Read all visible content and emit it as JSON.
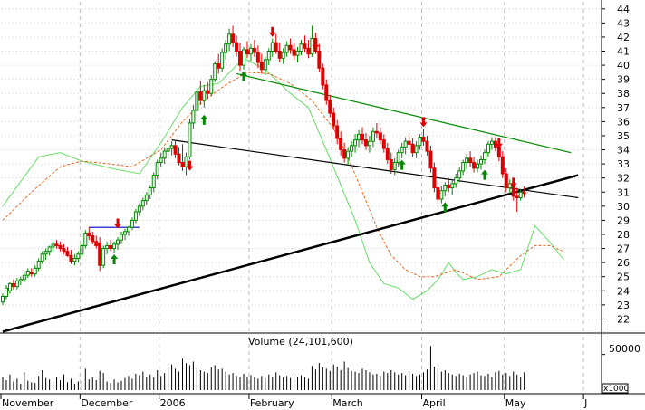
{
  "chart_data": {
    "type": "candlestick",
    "price_axis": {
      "ylim": [
        21,
        44.5
      ],
      "ticks": [
        22,
        23,
        24,
        25,
        26,
        27,
        28,
        29,
        30,
        31,
        32,
        33,
        34,
        35,
        36,
        37,
        38,
        39,
        40,
        41,
        42,
        43,
        44
      ],
      "side": "right"
    },
    "volume_axis": {
      "label": "Volume (24,101,600)",
      "tick": "50000",
      "unit": "x1000",
      "ylim": [
        0,
        75000
      ]
    },
    "x_axis": {
      "labels": [
        "November",
        "December",
        "2006",
        "February",
        "March",
        "April",
        "May",
        "J"
      ],
      "day_count": 166,
      "label_days": [
        0,
        22,
        44,
        69,
        92,
        117,
        140,
        162
      ],
      "grid_days": [
        22,
        44,
        69,
        92,
        117,
        140,
        162
      ]
    },
    "colors": {
      "up": "#008800",
      "down": "#dd0000",
      "ma_fast": "#66dd66",
      "ma_slow": "#ee6622",
      "resistance": "#008800",
      "support": "#000000",
      "box": "#0000cc"
    },
    "trendlines": [
      {
        "name": "long-support",
        "color": "#000000",
        "width": 2.5,
        "points": [
          [
            0,
            21.1
          ],
          [
            160,
            32.2
          ]
        ]
      },
      {
        "name": "neckline",
        "color": "#000000",
        "width": 1.2,
        "points": [
          [
            47,
            34.7
          ],
          [
            160,
            30.6
          ]
        ]
      },
      {
        "name": "resistance",
        "color": "#008800",
        "width": 1.2,
        "points": [
          [
            65,
            39.4
          ],
          [
            158,
            33.8
          ]
        ]
      },
      {
        "name": "breakout-box",
        "color": "#0000cc",
        "width": 1.2,
        "points": [
          [
            24,
            28.5
          ],
          [
            38,
            28.5
          ]
        ]
      }
    ],
    "ma_fast": [
      [
        0,
        30
      ],
      [
        10,
        33.5
      ],
      [
        16,
        33.8
      ],
      [
        22,
        33.2
      ],
      [
        30,
        32.7
      ],
      [
        38,
        32.3
      ],
      [
        44,
        34.5
      ],
      [
        50,
        37
      ],
      [
        55,
        38.5
      ],
      [
        60,
        38.7
      ],
      [
        67,
        40.5
      ],
      [
        73,
        39.7
      ],
      [
        80,
        38
      ],
      [
        85,
        37
      ],
      [
        90,
        34
      ],
      [
        94,
        31.5
      ],
      [
        98,
        29
      ],
      [
        102,
        26
      ],
      [
        106,
        24.5
      ],
      [
        110,
        24.2
      ],
      [
        114,
        23.4
      ],
      [
        118,
        24
      ],
      [
        121,
        24.8
      ],
      [
        124,
        26
      ],
      [
        126,
        25.3
      ],
      [
        128,
        24.8
      ],
      [
        132,
        25
      ],
      [
        136,
        25.5
      ],
      [
        140,
        25.2
      ],
      [
        144,
        25.5
      ],
      [
        148,
        28.6
      ],
      [
        152,
        27.5
      ],
      [
        156,
        26.2
      ]
    ],
    "ma_slow": [
      [
        0,
        29
      ],
      [
        8,
        31
      ],
      [
        16,
        32.8
      ],
      [
        22,
        33.2
      ],
      [
        30,
        33
      ],
      [
        36,
        32.8
      ],
      [
        44,
        34
      ],
      [
        50,
        36
      ],
      [
        56,
        37.5
      ],
      [
        62,
        38.6
      ],
      [
        68,
        39.5
      ],
      [
        74,
        39.4
      ],
      [
        80,
        38.7
      ],
      [
        86,
        37.5
      ],
      [
        92,
        35.5
      ],
      [
        96,
        33.5
      ],
      [
        100,
        31
      ],
      [
        104,
        28.5
      ],
      [
        108,
        26.5
      ],
      [
        112,
        25.5
      ],
      [
        116,
        25
      ],
      [
        120,
        25
      ],
      [
        126,
        25.5
      ],
      [
        132,
        24.8
      ],
      [
        138,
        25
      ],
      [
        144,
        26.5
      ],
      [
        148,
        27.2
      ],
      [
        152,
        27.2
      ],
      [
        156,
        26.8
      ]
    ],
    "ohlc": [
      [
        0,
        23.2,
        23.8,
        23.0,
        23.6
      ],
      [
        1,
        23.6,
        24.4,
        23.4,
        24.2
      ],
      [
        2,
        24.0,
        24.6,
        23.8,
        24.5
      ],
      [
        3,
        24.5,
        24.8,
        24.1,
        24.3
      ],
      [
        4,
        24.3,
        24.9,
        24.1,
        24.7
      ],
      [
        5,
        24.7,
        25.0,
        24.4,
        24.8
      ],
      [
        6,
        24.8,
        25.3,
        24.6,
        25.1
      ],
      [
        7,
        25.1,
        25.6,
        24.9,
        25.4
      ],
      [
        8,
        25.3,
        25.6,
        25.0,
        25.2
      ],
      [
        9,
        25.2,
        25.8,
        25.0,
        25.6
      ],
      [
        10,
        25.6,
        26.3,
        25.4,
        26.1
      ],
      [
        11,
        26.1,
        26.8,
        25.9,
        26.6
      ],
      [
        12,
        26.6,
        27.0,
        26.2,
        26.8
      ],
      [
        13,
        26.8,
        27.2,
        26.5,
        27.1
      ],
      [
        14,
        27.1,
        27.5,
        26.8,
        27.3
      ],
      [
        15,
        27.3,
        27.6,
        27.0,
        27.2
      ],
      [
        16,
        27.2,
        27.5,
        26.8,
        27.0
      ],
      [
        17,
        27.0,
        27.3,
        26.6,
        26.8
      ],
      [
        18,
        26.8,
        27.1,
        26.4,
        26.5
      ],
      [
        19,
        26.5,
        26.9,
        25.9,
        26.1
      ],
      [
        20,
        26.1,
        26.6,
        25.8,
        26.3
      ],
      [
        21,
        26.3,
        26.8,
        26.0,
        26.6
      ],
      [
        22,
        26.6,
        27.4,
        26.4,
        27.2
      ],
      [
        23,
        27.2,
        28.3,
        27.0,
        28.1
      ],
      [
        24,
        28.1,
        28.5,
        27.6,
        27.9
      ],
      [
        25,
        27.9,
        28.2,
        27.3,
        27.5
      ],
      [
        26,
        27.5,
        27.9,
        27.0,
        27.2
      ],
      [
        27,
        27.4,
        27.8,
        25.4,
        25.8
      ],
      [
        28,
        25.8,
        27.2,
        25.6,
        27.0
      ],
      [
        29,
        27.0,
        27.5,
        26.6,
        27.2
      ],
      [
        30,
        27.2,
        27.6,
        26.8,
        27.0
      ],
      [
        31,
        27.0,
        27.5,
        26.7,
        27.3
      ],
      [
        32,
        27.3,
        27.8,
        26.9,
        27.6
      ],
      [
        33,
        27.6,
        28.2,
        27.3,
        28.0
      ],
      [
        34,
        28.0,
        28.4,
        27.6,
        28.2
      ],
      [
        35,
        28.2,
        28.6,
        27.9,
        28.5
      ],
      [
        36,
        28.5,
        29.2,
        28.3,
        29.0
      ],
      [
        37,
        29.0,
        29.8,
        28.8,
        29.6
      ],
      [
        38,
        29.6,
        30.2,
        29.3,
        30.0
      ],
      [
        39,
        30.0,
        30.6,
        29.7,
        30.4
      ],
      [
        40,
        30.4,
        31.0,
        30.1,
        30.8
      ],
      [
        41,
        30.8,
        31.5,
        30.5,
        31.3
      ],
      [
        42,
        31.3,
        32.4,
        31.0,
        32.2
      ],
      [
        43,
        32.2,
        33.3,
        31.9,
        33.1
      ],
      [
        44,
        33.1,
        33.8,
        32.8,
        33.4
      ],
      [
        45,
        33.4,
        34.2,
        33.0,
        33.9
      ],
      [
        46,
        33.9,
        34.5,
        33.4,
        34.1
      ],
      [
        47,
        34.1,
        34.6,
        33.6,
        34.3
      ],
      [
        48,
        34.3,
        34.7,
        33.4,
        33.7
      ],
      [
        49,
        33.7,
        34.2,
        32.9,
        33.1
      ],
      [
        50,
        33.1,
        34.4,
        32.5,
        32.8
      ],
      [
        51,
        32.8,
        33.8,
        32.2,
        33.5
      ],
      [
        52,
        33.5,
        36.2,
        33.3,
        35.9
      ],
      [
        53,
        35.9,
        37.2,
        35.5,
        36.8
      ],
      [
        54,
        36.8,
        38.4,
        36.4,
        38.1
      ],
      [
        55,
        38.1,
        38.9,
        37.2,
        37.5
      ],
      [
        56,
        37.5,
        38.6,
        37.0,
        38.2
      ],
      [
        57,
        38.2,
        38.8,
        37.6,
        38.0
      ],
      [
        58,
        38.0,
        39.3,
        37.8,
        39.0
      ],
      [
        59,
        39.0,
        40.3,
        38.8,
        40.1
      ],
      [
        60,
        40.1,
        40.8,
        39.4,
        39.8
      ],
      [
        61,
        39.8,
        41.2,
        39.5,
        40.9
      ],
      [
        62,
        40.9,
        41.8,
        40.4,
        41.5
      ],
      [
        63,
        41.5,
        42.6,
        41.0,
        42.2
      ],
      [
        64,
        42.2,
        42.8,
        41.3,
        41.6
      ],
      [
        65,
        41.6,
        42.1,
        40.6,
        41.0
      ],
      [
        66,
        41.0,
        41.6,
        39.6,
        40.0
      ],
      [
        67,
        40.0,
        41.3,
        39.7,
        41.1
      ],
      [
        68,
        41.1,
        41.7,
        40.5,
        40.8
      ],
      [
        69,
        40.8,
        41.5,
        40.3,
        41.2
      ],
      [
        70,
        41.2,
        41.8,
        40.6,
        40.9
      ],
      [
        71,
        40.9,
        41.4,
        39.8,
        40.2
      ],
      [
        72,
        40.2,
        40.8,
        39.4,
        39.7
      ],
      [
        73,
        39.7,
        40.6,
        39.3,
        40.4
      ],
      [
        74,
        40.4,
        41.2,
        40.0,
        41.0
      ],
      [
        75,
        41.0,
        41.9,
        40.6,
        41.6
      ],
      [
        76,
        41.6,
        42.2,
        40.8,
        41.0
      ],
      [
        77,
        41.0,
        41.6,
        40.2,
        40.5
      ],
      [
        78,
        40.5,
        41.2,
        40.1,
        40.9
      ],
      [
        79,
        40.9,
        41.7,
        40.6,
        41.4
      ],
      [
        80,
        41.4,
        41.9,
        40.8,
        41.1
      ],
      [
        81,
        41.1,
        41.6,
        40.4,
        40.7
      ],
      [
        82,
        40.7,
        41.3,
        40.2,
        41.0
      ],
      [
        83,
        41.0,
        41.8,
        40.7,
        41.5
      ],
      [
        84,
        41.5,
        42.1,
        40.9,
        41.2
      ],
      [
        85,
        41.2,
        41.8,
        40.5,
        40.8
      ],
      [
        86,
        40.8,
        42.8,
        40.6,
        41.9
      ],
      [
        87,
        41.9,
        42.3,
        40.8,
        41.0
      ],
      [
        88,
        41.0,
        41.5,
        39.5,
        39.8
      ],
      [
        89,
        39.8,
        40.1,
        38.3,
        38.6
      ],
      [
        90,
        38.6,
        39.0,
        37.2,
        37.5
      ],
      [
        91,
        37.5,
        37.9,
        36.3,
        36.6
      ],
      [
        92,
        36.6,
        37.0,
        35.4,
        35.7
      ],
      [
        93,
        35.7,
        36.1,
        34.4,
        34.8
      ],
      [
        94,
        34.8,
        35.3,
        33.6,
        34.0
      ],
      [
        95,
        34.0,
        34.5,
        33.1,
        33.4
      ],
      [
        96,
        33.4,
        34.2,
        32.9,
        33.9
      ],
      [
        97,
        33.9,
        34.6,
        33.5,
        34.3
      ],
      [
        98,
        34.3,
        35.1,
        33.8,
        34.7
      ],
      [
        99,
        34.7,
        35.4,
        34.2,
        35.1
      ],
      [
        100,
        35.1,
        35.6,
        34.4,
        34.7
      ],
      [
        101,
        34.7,
        35.2,
        34.0,
        34.3
      ],
      [
        102,
        34.3,
        35.0,
        33.8,
        34.6
      ],
      [
        103,
        34.6,
        35.6,
        34.2,
        35.3
      ],
      [
        104,
        35.3,
        35.9,
        34.8,
        35.2
      ],
      [
        105,
        35.2,
        35.6,
        34.4,
        34.7
      ],
      [
        106,
        34.7,
        35.1,
        33.8,
        34.1
      ],
      [
        107,
        34.1,
        34.5,
        33.0,
        33.3
      ],
      [
        108,
        33.3,
        33.8,
        32.3,
        32.6
      ],
      [
        109,
        32.6,
        33.4,
        32.2,
        33.1
      ],
      [
        110,
        33.1,
        34.0,
        32.8,
        33.8
      ],
      [
        111,
        33.8,
        34.5,
        33.4,
        34.2
      ],
      [
        112,
        34.2,
        34.9,
        33.7,
        34.6
      ],
      [
        113,
        34.6,
        35.2,
        34.0,
        34.4
      ],
      [
        114,
        34.4,
        34.8,
        33.5,
        33.8
      ],
      [
        115,
        33.8,
        34.6,
        33.4,
        34.3
      ],
      [
        116,
        34.3,
        35.1,
        34.0,
        34.9
      ],
      [
        117,
        34.9,
        35.5,
        34.3,
        34.6
      ],
      [
        118,
        34.6,
        35.0,
        33.6,
        33.9
      ],
      [
        119,
        33.9,
        34.3,
        32.4,
        32.7
      ],
      [
        120,
        32.7,
        33.1,
        31.0,
        31.3
      ],
      [
        121,
        31.3,
        31.8,
        30.2,
        30.5
      ],
      [
        122,
        30.5,
        31.4,
        30.2,
        31.1
      ],
      [
        123,
        31.1,
        31.7,
        30.7,
        31.5
      ],
      [
        124,
        31.5,
        32.0,
        31.0,
        31.3
      ],
      [
        125,
        31.3,
        31.8,
        30.8,
        31.6
      ],
      [
        126,
        31.6,
        32.3,
        31.3,
        32.0
      ],
      [
        127,
        32.0,
        32.8,
        31.7,
        32.5
      ],
      [
        128,
        32.5,
        33.3,
        32.2,
        33.1
      ],
      [
        129,
        33.1,
        33.7,
        32.6,
        33.4
      ],
      [
        130,
        33.4,
        33.9,
        32.8,
        33.1
      ],
      [
        131,
        33.1,
        33.5,
        32.4,
        32.7
      ],
      [
        132,
        32.7,
        33.3,
        32.4,
        33.0
      ],
      [
        133,
        33.0,
        33.6,
        32.6,
        33.3
      ],
      [
        134,
        33.3,
        34.0,
        33.0,
        33.8
      ],
      [
        135,
        33.8,
        34.6,
        33.5,
        34.4
      ],
      [
        136,
        34.4,
        34.9,
        34.0,
        34.6
      ],
      [
        137,
        34.6,
        34.9,
        33.9,
        34.2
      ],
      [
        138,
        34.2,
        34.6,
        33.2,
        33.5
      ],
      [
        139,
        33.5,
        33.9,
        32.0,
        32.3
      ],
      [
        140,
        32.3,
        32.7,
        31.0,
        31.3
      ],
      [
        141,
        31.3,
        31.9,
        30.9,
        31.6
      ],
      [
        142,
        31.6,
        31.9,
        30.4,
        30.7
      ],
      [
        143,
        30.7,
        31.3,
        29.6,
        30.6
      ],
      [
        144,
        30.6,
        31.2,
        30.4,
        31.0
      ],
      [
        145,
        31.0,
        31.4,
        30.6,
        30.9
      ]
    ],
    "volume": [
      18000,
      14000,
      22000,
      12000,
      16000,
      9000,
      25000,
      13000,
      11000,
      10000,
      20000,
      28000,
      17000,
      15000,
      12000,
      19000,
      14000,
      22000,
      11000,
      16000,
      9000,
      12000,
      13000,
      30000,
      15000,
      18000,
      14000,
      27000,
      24000,
      12000,
      10000,
      15000,
      11000,
      13000,
      17000,
      20000,
      16000,
      23000,
      21000,
      26000,
      19000,
      22000,
      18000,
      28000,
      20000,
      24000,
      32000,
      36000,
      30000,
      26000,
      44000,
      38000,
      35000,
      40000,
      31000,
      28000,
      26000,
      24000,
      32000,
      35000,
      29000,
      30000,
      26000,
      22000,
      24000,
      20000,
      18000,
      23000,
      19000,
      21000,
      18000,
      16000,
      20000,
      17000,
      22000,
      19000,
      25000,
      21000,
      18000,
      20000,
      17000,
      23000,
      19000,
      21000,
      18000,
      16000,
      34000,
      29000,
      38000,
      32000,
      30000,
      27000,
      36000,
      33000,
      28000,
      40000,
      31000,
      27000,
      26000,
      24000,
      30000,
      28000,
      25000,
      22000,
      23000,
      20000,
      26000,
      24000,
      28000,
      25000,
      22000,
      24000,
      21000,
      27000,
      23000,
      20000,
      22000,
      25000,
      29000,
      62000,
      33000,
      30000,
      26000,
      28000,
      24000,
      22000,
      20000,
      23000,
      21000,
      19000,
      22000,
      24000,
      26000,
      21000,
      20000,
      23000,
      18000,
      25000,
      27000,
      22000,
      24000,
      20000,
      26000,
      22000,
      19000,
      25000
    ],
    "arrows_up": [
      [
        31,
        26.2
      ],
      [
        56,
        36.1
      ],
      [
        67,
        39.2
      ],
      [
        111,
        32.9
      ],
      [
        123,
        29.9
      ],
      [
        134,
        32.2
      ]
    ],
    "arrows_down": [
      [
        32,
        28.8
      ],
      [
        52,
        32.9
      ],
      [
        75,
        42.4
      ],
      [
        87,
        41.5
      ],
      [
        117,
        36.0
      ],
      [
        138,
        34.5
      ],
      [
        142,
        31.7
      ]
    ]
  }
}
